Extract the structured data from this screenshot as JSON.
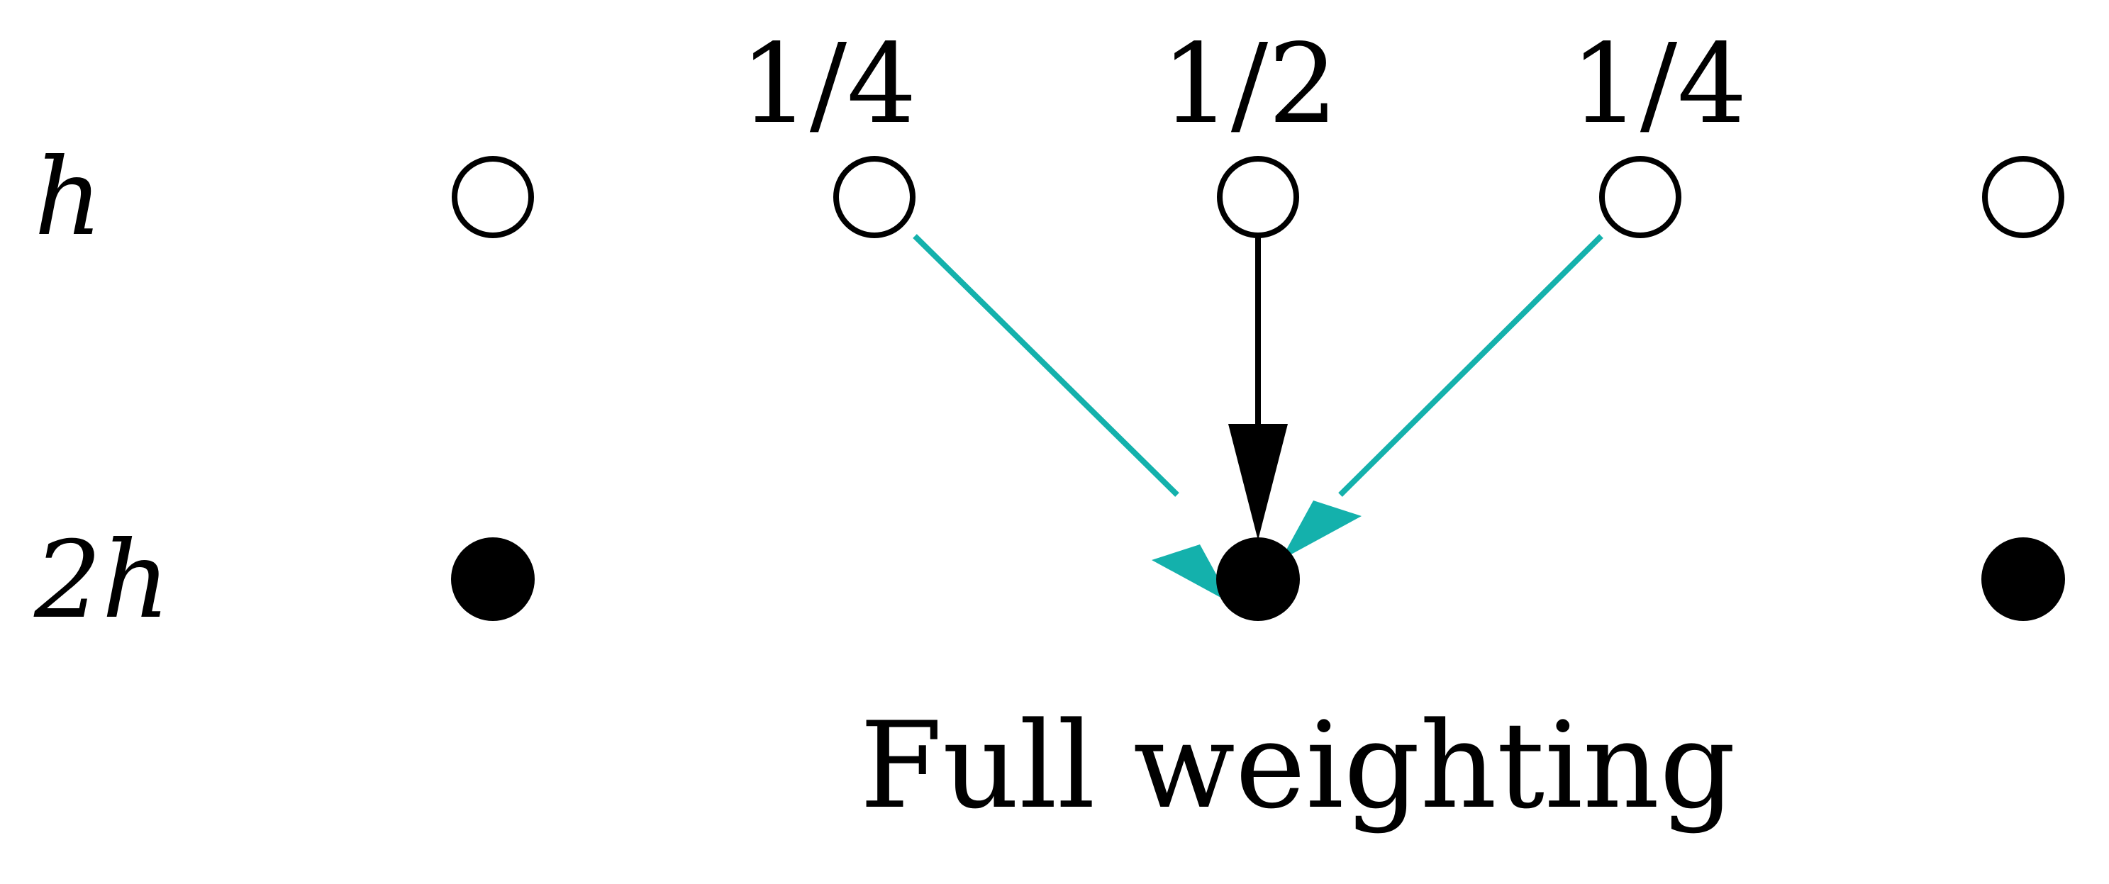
{
  "row_labels": {
    "fine": "h",
    "coarse": "2h"
  },
  "weights": {
    "left": "1/4",
    "center": "1/2",
    "right": "1/4"
  },
  "caption": "Full weighting",
  "colors": {
    "fine_node_stroke": "#000000",
    "coarse_node_fill": "#000000",
    "center_arrow": "#000000",
    "side_arrows": "#14B1AC",
    "background": "#ffffff"
  }
}
